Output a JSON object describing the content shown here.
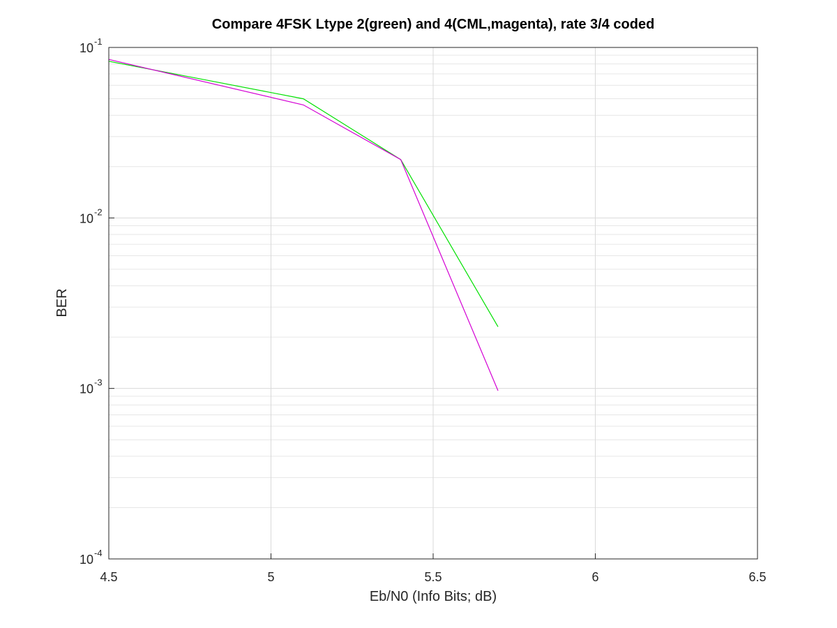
{
  "chart_data": {
    "type": "line",
    "title": "Compare 4FSK Ltype 2(green) and 4(CML,magenta), rate 3/4 coded",
    "xlabel": "Eb/N0 (Info Bits; dB)",
    "ylabel": "BER",
    "xscale": "linear",
    "yscale": "log",
    "xlim": [
      4.5,
      6.5
    ],
    "ylim": [
      0.0001,
      0.1
    ],
    "grid": true,
    "legend": "none",
    "x_ticks": [
      {
        "value": 4.5,
        "label": "4.5"
      },
      {
        "value": 5,
        "label": "5"
      },
      {
        "value": 5.5,
        "label": "5.5"
      },
      {
        "value": 6,
        "label": "6"
      },
      {
        "value": 6.5,
        "label": "6.5"
      }
    ],
    "y_ticks": [
      {
        "value": 0.1,
        "base": "10",
        "exp": "-1"
      },
      {
        "value": 0.01,
        "base": "10",
        "exp": "-2"
      },
      {
        "value": 0.001,
        "base": "10",
        "exp": "-3"
      },
      {
        "value": 0.0001,
        "base": "10",
        "exp": "-4"
      }
    ],
    "series": [
      {
        "color": "#00e000",
        "x": [
          4.5,
          5.1,
          5.4,
          5.7
        ],
        "y": [
          0.083,
          0.05,
          0.022,
          0.0023
        ]
      },
      {
        "color": "#d400d4",
        "x": [
          4.5,
          5.1,
          5.4,
          5.7
        ],
        "y": [
          0.085,
          0.046,
          0.022,
          0.00097
        ]
      }
    ]
  }
}
